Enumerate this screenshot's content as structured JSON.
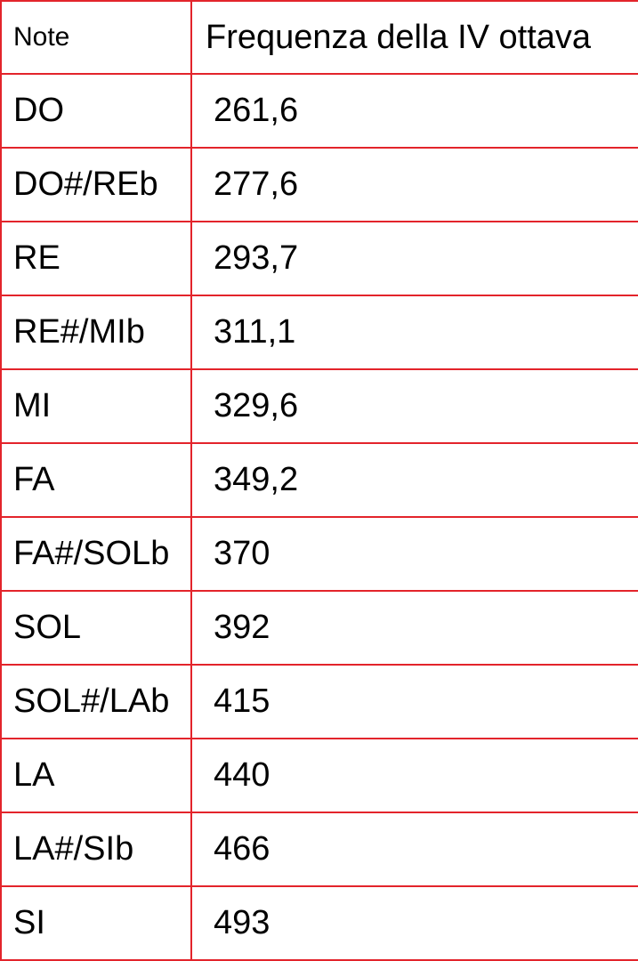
{
  "table": {
    "headers": [
      "Note",
      "Frequenza della IV ottava"
    ],
    "rows": [
      {
        "note": "DO",
        "freq": "261,6"
      },
      {
        "note": "DO#/REb",
        "freq": "277,6"
      },
      {
        "note": "RE",
        "freq": "293,7"
      },
      {
        "note": "RE#/MIb",
        "freq": "311,1"
      },
      {
        "note": "MI",
        "freq": "329,6"
      },
      {
        "note": "FA",
        "freq": "349,2"
      },
      {
        "note": "FA#/SOLb",
        "freq": "370"
      },
      {
        "note": "SOL",
        "freq": "392"
      },
      {
        "note": "SOL#/LAb",
        "freq": "415"
      },
      {
        "note": "LA",
        "freq": "440"
      },
      {
        "note": "LA#/SIb",
        "freq": "466"
      },
      {
        "note": "SI",
        "freq": "493"
      }
    ],
    "border_color": "#e3242b"
  }
}
